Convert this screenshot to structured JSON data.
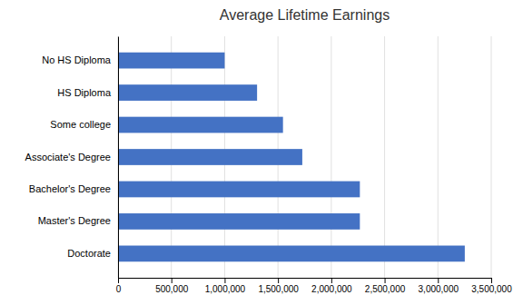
{
  "chart_data": {
    "type": "bar",
    "orientation": "horizontal",
    "title": "Average Lifetime Earnings",
    "categories": [
      "Doctorate",
      "Master's Degree",
      "Bachelor's Degree",
      "Associate's Degree",
      "Some college",
      "HS Diploma",
      "No HS Diploma"
    ],
    "values": [
      3252000,
      2268000,
      2268000,
      1728000,
      1547000,
      1304000,
      1000000
    ],
    "color": "#4472C4",
    "xlim": [
      0,
      3500000
    ],
    "xticks": [
      0,
      {
        "value": 500000,
        "label": "500,000"
      },
      {
        "value": 1000000,
        "label": "1,000,000"
      },
      {
        "value": 1500000,
        "label": "1,500,000"
      },
      {
        "value": 2000000,
        "label": "2,000,000"
      },
      {
        "value": 2500000,
        "label": "2,500,000"
      },
      {
        "value": 3000000,
        "label": "3,000,000"
      },
      {
        "value": 3500000,
        "label": "3,500,000"
      }
    ],
    "grid": true
  }
}
